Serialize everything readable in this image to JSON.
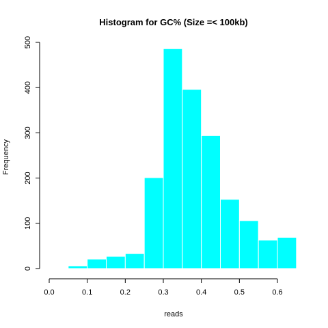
{
  "chart_data": {
    "type": "bar",
    "title": "Histogram for GC% (Size =< 100kb)",
    "xlabel": "reads",
    "ylabel": "Frequency",
    "bin_edges": [
      0.0,
      0.05,
      0.1,
      0.15,
      0.2,
      0.25,
      0.3,
      0.35,
      0.4,
      0.45,
      0.5,
      0.55,
      0.6,
      0.65
    ],
    "values": [
      1,
      6,
      21,
      27,
      33,
      201,
      486,
      396,
      294,
      153,
      106,
      63,
      69
    ],
    "xlim": [
      0.0,
      0.65
    ],
    "ylim": [
      0,
      500
    ],
    "x_ticks": [
      "0.0",
      "0.1",
      "0.2",
      "0.3",
      "0.4",
      "0.5",
      "0.6"
    ],
    "y_ticks": [
      "0",
      "100",
      "200",
      "300",
      "400",
      "500"
    ],
    "bar_color": "#00ffff",
    "bar_border_color": "#ffffff",
    "grid": false
  }
}
